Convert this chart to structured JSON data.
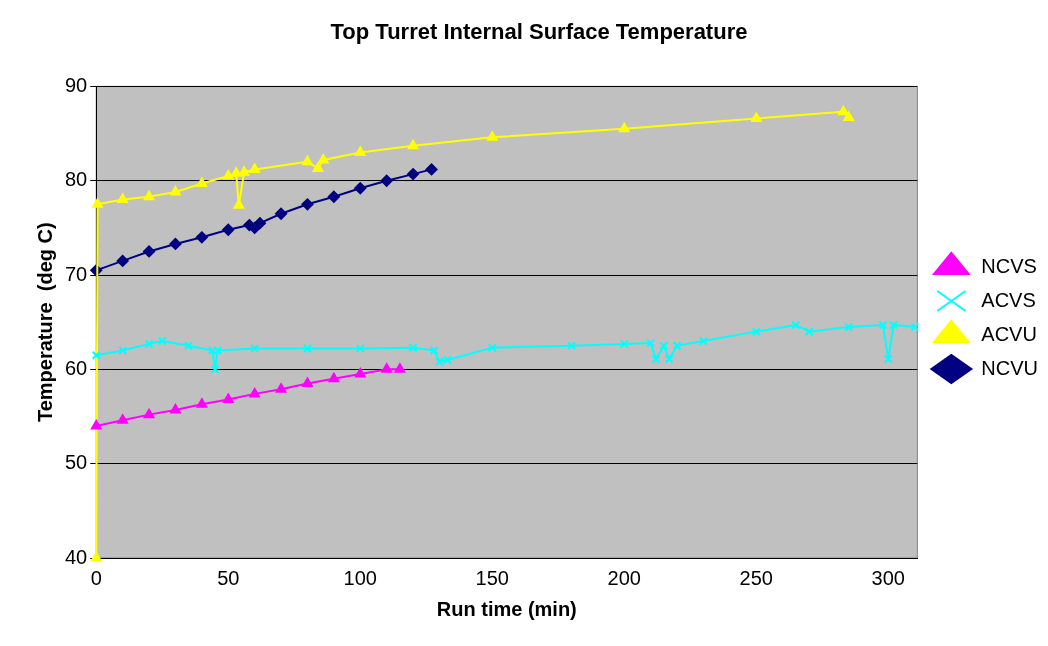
{
  "chart_data": {
    "type": "line",
    "title": "Top Turret Internal Surface Temperature",
    "xlabel": "Run time (min)",
    "ylabel": "Temperature  (deg C)",
    "xlim": [
      0,
      311
    ],
    "xticks": [
      0,
      50,
      100,
      150,
      200,
      250,
      300
    ],
    "ylim": [
      40,
      90
    ],
    "yticks": [
      40,
      50,
      60,
      70,
      80,
      90
    ],
    "grid": "y",
    "legend": "right",
    "line_style": "solid",
    "series": [
      {
        "name": "NCVS",
        "color": "#ff00ff",
        "marker": "triangle",
        "x": [
          0,
          10,
          20,
          30,
          40,
          50,
          60,
          70,
          80,
          90,
          100,
          110,
          115
        ],
        "values": [
          54,
          54.6,
          55.2,
          55.7,
          56.3,
          56.8,
          57.4,
          57.9,
          58.5,
          59,
          59.5,
          60,
          60
        ]
      },
      {
        "name": "ACVS",
        "color": "#00ffff",
        "marker": "cross",
        "x": [
          0,
          10,
          20,
          25,
          35,
          44,
          45,
          46,
          60,
          80,
          100,
          120,
          128,
          130,
          133,
          150,
          180,
          200,
          210,
          212,
          215,
          217,
          220,
          230,
          250,
          265,
          270,
          285,
          298,
          300,
          302,
          310
        ],
        "values": [
          61.5,
          62,
          62.7,
          63,
          62.5,
          62,
          60,
          62,
          62.2,
          62.2,
          62.2,
          62.3,
          62,
          60.8,
          61,
          62.3,
          62.5,
          62.7,
          62.8,
          61.1,
          62.5,
          61.1,
          62.5,
          63,
          64,
          64.7,
          64,
          64.5,
          64.7,
          61.1,
          64.7,
          64.5
        ]
      },
      {
        "name": "ACVU",
        "color": "#ffff00",
        "marker": "triangle",
        "x": [
          0,
          0.5,
          10,
          20,
          30,
          40,
          50,
          53,
          54,
          56,
          60,
          80,
          84,
          86,
          100,
          120,
          150,
          200,
          250,
          283,
          285
        ],
        "values": [
          40,
          77.5,
          78,
          78.3,
          78.8,
          79.7,
          80.5,
          80.8,
          77.4,
          80.9,
          81.2,
          82,
          81.3,
          82.2,
          83,
          83.7,
          84.6,
          85.5,
          86.6,
          87.3,
          86.7
        ]
      },
      {
        "name": "NCVU",
        "color": "#000080",
        "marker": "diamond",
        "x": [
          0,
          10,
          20,
          30,
          40,
          50,
          58,
          60,
          62,
          70,
          80,
          90,
          100,
          110,
          120,
          127
        ],
        "values": [
          70.5,
          71.5,
          72.5,
          73.3,
          74,
          74.8,
          75.3,
          75,
          75.5,
          76.5,
          77.5,
          78.3,
          79.2,
          80,
          80.7,
          81.2
        ]
      }
    ]
  }
}
